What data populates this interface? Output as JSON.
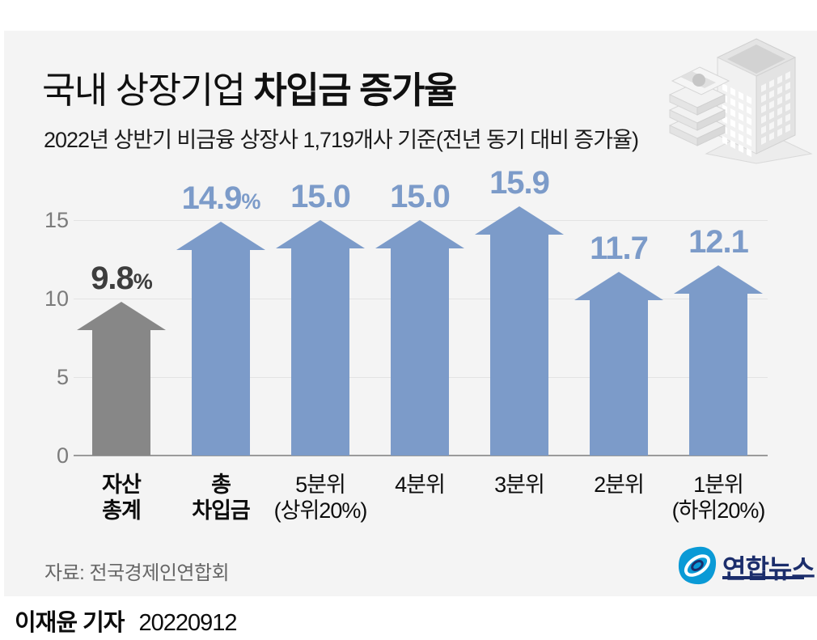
{
  "header": {
    "title_regular": "국내 상장기업 ",
    "title_bold": "차입금 증가율",
    "subtitle": "2022년 상반기 비금융 상장사 1,719개사 기준(전년 동기 대비 증가율)"
  },
  "chart_data": {
    "type": "bar",
    "title": "국내 상장기업 차입금 증가율",
    "subtitle": "2022년 상반기 비금융 상장사 1,719개사 기준(전년 동기 대비 증가율)",
    "unit": "%",
    "ylim": [
      0,
      17
    ],
    "yticks": [
      0,
      5,
      10,
      15
    ],
    "grid": true,
    "legend": "none",
    "categories": [
      "자산총계",
      "총차입금",
      "5분위(상위20%)",
      "4분위",
      "3분위",
      "2분위",
      "1분위(하위20%)"
    ],
    "values": [
      9.8,
      14.9,
      15.0,
      15.0,
      15.9,
      11.7,
      12.1
    ],
    "bars": [
      {
        "cat_line1": "자산",
        "cat_line2": "총계",
        "cat_bold": true,
        "value": 9.8,
        "display": "9.8",
        "suffix": "%",
        "arrow_color": "#878787",
        "label_color": "#3d3d3d"
      },
      {
        "cat_line1": "총",
        "cat_line2": "차입금",
        "cat_bold": true,
        "value": 14.9,
        "display": "14.9",
        "suffix": "%",
        "arrow_color": "#7c9bc9",
        "label_color": "#7c9bc9"
      },
      {
        "cat_line1": "5분위",
        "cat_line2": "(상위20%)",
        "cat_bold": false,
        "value": 15.0,
        "display": "15.0",
        "suffix": "",
        "arrow_color": "#7c9bc9",
        "label_color": "#7c9bc9"
      },
      {
        "cat_line1": "4분위",
        "cat_line2": "",
        "cat_bold": false,
        "value": 15.0,
        "display": "15.0",
        "suffix": "",
        "arrow_color": "#7c9bc9",
        "label_color": "#7c9bc9"
      },
      {
        "cat_line1": "3분위",
        "cat_line2": "",
        "cat_bold": false,
        "value": 15.9,
        "display": "15.9",
        "suffix": "",
        "arrow_color": "#7c9bc9",
        "label_color": "#7c9bc9"
      },
      {
        "cat_line1": "2분위",
        "cat_line2": "",
        "cat_bold": false,
        "value": 11.7,
        "display": "11.7",
        "suffix": "",
        "arrow_color": "#7c9bc9",
        "label_color": "#7c9bc9"
      },
      {
        "cat_line1": "1분위",
        "cat_line2": "(하위20%)",
        "cat_bold": false,
        "value": 12.1,
        "display": "12.1",
        "suffix": "",
        "arrow_color": "#7c9bc9",
        "label_color": "#7c9bc9"
      }
    ]
  },
  "footer": {
    "source": "자료: 전국경제인연합회",
    "logo_text": "연합뉴스",
    "byline_name": "이재윤 기자",
    "byline_date": "20220912"
  },
  "colors": {
    "background": "#ffffff",
    "card": "#f4f4f4",
    "gray_arrow": "#878787",
    "blue_arrow": "#7c9bc9",
    "gridline": "#e3e3e3",
    "baseline": "#9a9a9a",
    "ytick_text": "#7b7b7b",
    "logo_navy": "#1b2d6b",
    "logo_blue": "#0a9ad6"
  }
}
